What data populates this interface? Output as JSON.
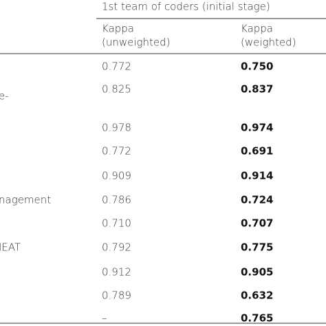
{
  "table": {
    "group_header": "1st team of coders (initial stage)",
    "columns": [
      [
        "Kappa",
        "(unweighted)"
      ],
      [
        "Kappa",
        "(weighted)"
      ]
    ],
    "rows": [
      {
        "unweighted": "0.772",
        "weighted": "0.750"
      },
      {
        "label": "e-",
        "unweighted": "0.825",
        "weighted": "0.837"
      },
      {
        "unweighted": "0.978",
        "weighted": "0.974"
      },
      {
        "unweighted": "0.772",
        "weighted": "0.691"
      },
      {
        "unweighted": "0.909",
        "weighted": "0.914"
      },
      {
        "label": "nagement",
        "unweighted": "0.786",
        "weighted": "0.724"
      },
      {
        "unweighted": "0.710",
        "weighted": "0.707"
      },
      {
        "label": "IEAT",
        "unweighted": "0.792",
        "weighted": "0.775"
      },
      {
        "unweighted": "0.912",
        "weighted": "0.905"
      },
      {
        "unweighted": "0.789",
        "weighted": "0.632"
      },
      {
        "unweighted": "–",
        "weighted": "0.765"
      }
    ]
  }
}
